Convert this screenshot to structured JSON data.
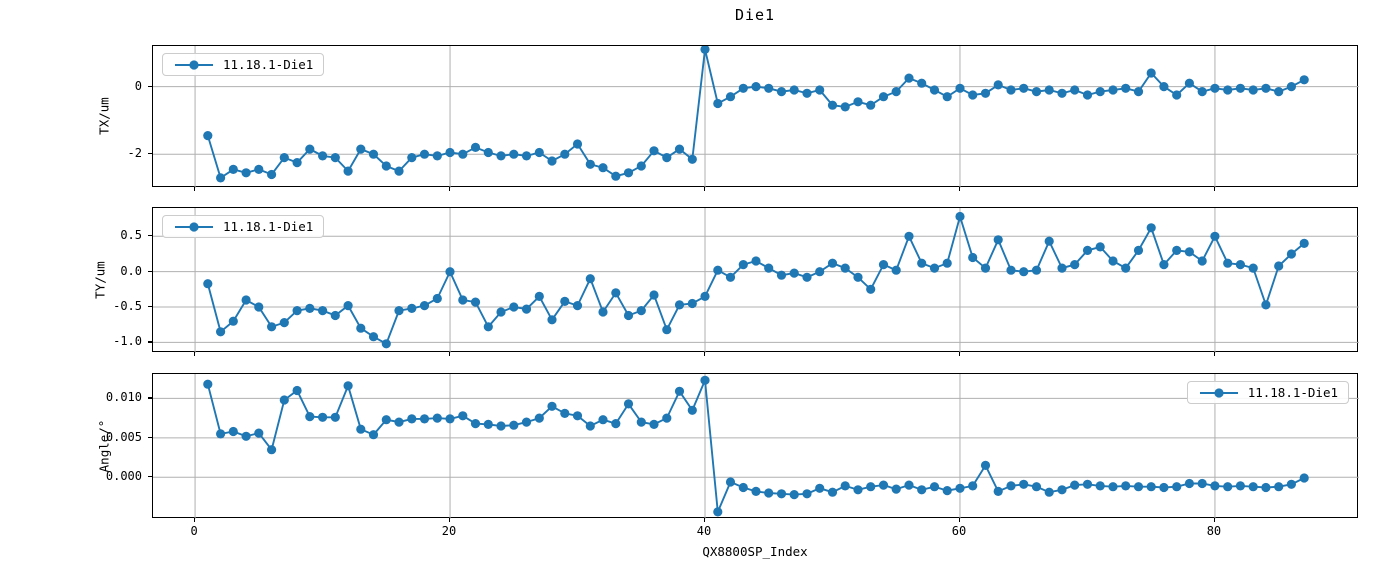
{
  "title": "Die1",
  "xlabel": "QX8800SP_Index",
  "legend_label": "11.18.1-Die1",
  "colors": {
    "series": "#1f77b4",
    "grid": "#b0b0b0",
    "spine": "#000000",
    "legend_border": "#cccccc",
    "background": "#ffffff",
    "text": "#000000"
  },
  "chart_data": [
    {
      "type": "line",
      "ylabel": "TX/um",
      "legend": {
        "label": "11.18.1-Die1",
        "position": "top-left"
      },
      "x_start": 1,
      "x_step": 1,
      "xlim": [
        -3.3,
        91.3
      ],
      "ylim": [
        -3.0,
        1.2
      ],
      "grid": true,
      "xticks": [
        {
          "v": 0,
          "label": "0"
        },
        {
          "v": 20,
          "label": "20"
        },
        {
          "v": 40,
          "label": "40"
        },
        {
          "v": 60,
          "label": "60"
        },
        {
          "v": 80,
          "label": "80"
        }
      ],
      "yticks": [
        {
          "v": 0,
          "label": "0"
        },
        {
          "v": -2,
          "label": "-2"
        }
      ],
      "series": [
        {
          "name": "11.18.1-Die1",
          "color": "#1f77b4",
          "values": [
            -1.45,
            -2.7,
            -2.45,
            -2.55,
            -2.45,
            -2.6,
            -2.1,
            -2.25,
            -1.85,
            -2.05,
            -2.1,
            -2.5,
            -1.85,
            -2.0,
            -2.35,
            -2.5,
            -2.1,
            -2.0,
            -2.05,
            -1.95,
            -2.0,
            -1.8,
            -1.95,
            -2.05,
            -2.0,
            -2.05,
            -1.95,
            -2.2,
            -2.0,
            -1.7,
            -2.3,
            -2.4,
            -2.65,
            -2.55,
            -2.35,
            -1.9,
            -2.1,
            -1.85,
            -2.15,
            1.1,
            -0.5,
            -0.3,
            -0.05,
            0.0,
            -0.05,
            -0.15,
            -0.1,
            -0.2,
            -0.1,
            -0.55,
            -0.6,
            -0.45,
            -0.55,
            -0.3,
            -0.15,
            0.25,
            0.1,
            -0.1,
            -0.3,
            -0.05,
            -0.25,
            -0.2,
            0.05,
            -0.1,
            -0.05,
            -0.15,
            -0.1,
            -0.2,
            -0.1,
            -0.25,
            -0.15,
            -0.1,
            -0.05,
            -0.15,
            0.4,
            0.0,
            -0.25,
            0.1,
            -0.15,
            -0.05,
            -0.1,
            -0.05,
            -0.1,
            -0.05,
            -0.15,
            0.0,
            0.2
          ]
        }
      ]
    },
    {
      "type": "line",
      "ylabel": "TY/um",
      "legend": {
        "label": "11.18.1-Die1",
        "position": "top-left"
      },
      "x_start": 1,
      "x_step": 1,
      "xlim": [
        -3.3,
        91.3
      ],
      "ylim": [
        -1.15,
        0.9
      ],
      "grid": true,
      "xticks": [
        {
          "v": 0,
          "label": "0"
        },
        {
          "v": 20,
          "label": "20"
        },
        {
          "v": 40,
          "label": "40"
        },
        {
          "v": 60,
          "label": "60"
        },
        {
          "v": 80,
          "label": "80"
        }
      ],
      "yticks": [
        {
          "v": 0.5,
          "label": "0.5"
        },
        {
          "v": 0.0,
          "label": "0.0"
        },
        {
          "v": -0.5,
          "label": "-0.5"
        },
        {
          "v": -1.0,
          "label": "-1.0"
        }
      ],
      "series": [
        {
          "name": "11.18.1-Die1",
          "color": "#1f77b4",
          "values": [
            -0.17,
            -0.85,
            -0.7,
            -0.4,
            -0.5,
            -0.78,
            -0.72,
            -0.55,
            -0.52,
            -0.55,
            -0.62,
            -0.48,
            -0.8,
            -0.92,
            -1.02,
            -0.55,
            -0.52,
            -0.48,
            -0.38,
            0.0,
            -0.4,
            -0.43,
            -0.78,
            -0.57,
            -0.5,
            -0.53,
            -0.35,
            -0.68,
            -0.42,
            -0.48,
            -0.1,
            -0.57,
            -0.3,
            -0.62,
            -0.55,
            -0.33,
            -0.82,
            -0.47,
            -0.45,
            -0.35,
            0.02,
            -0.08,
            0.1,
            0.15,
            0.05,
            -0.05,
            -0.02,
            -0.08,
            0.0,
            0.12,
            0.05,
            -0.08,
            -0.25,
            0.1,
            0.02,
            0.5,
            0.12,
            0.05,
            0.12,
            0.78,
            0.2,
            0.05,
            0.45,
            0.02,
            0.0,
            0.02,
            0.43,
            0.05,
            0.1,
            0.3,
            0.35,
            0.15,
            0.05,
            0.3,
            0.62,
            0.1,
            0.3,
            0.28,
            0.15,
            0.5,
            0.12,
            0.1,
            0.05,
            -0.47,
            0.08,
            0.25,
            0.4
          ]
        }
      ]
    },
    {
      "type": "line",
      "ylabel": "Angle/°",
      "legend": {
        "label": "11.18.1-Die1",
        "position": "top-right"
      },
      "x_start": 1,
      "x_step": 1,
      "xlim": [
        -3.3,
        91.3
      ],
      "ylim": [
        -0.0053,
        0.0131
      ],
      "grid": true,
      "xticks": [
        {
          "v": 0,
          "label": "0"
        },
        {
          "v": 20,
          "label": "20"
        },
        {
          "v": 40,
          "label": "40"
        },
        {
          "v": 60,
          "label": "60"
        },
        {
          "v": 80,
          "label": "80"
        }
      ],
      "yticks": [
        {
          "v": 0.01,
          "label": "0.010"
        },
        {
          "v": 0.005,
          "label": "0.005"
        },
        {
          "v": 0.0,
          "label": "0.000"
        }
      ],
      "series": [
        {
          "name": "11.18.1-Die1",
          "color": "#1f77b4",
          "values": [
            0.0118,
            0.0055,
            0.0058,
            0.0052,
            0.0056,
            0.0035,
            0.0098,
            0.011,
            0.0077,
            0.0076,
            0.0076,
            0.0116,
            0.0061,
            0.0054,
            0.0073,
            0.007,
            0.0074,
            0.0074,
            0.0075,
            0.0074,
            0.0078,
            0.0068,
            0.0067,
            0.0065,
            0.0066,
            0.007,
            0.0075,
            0.009,
            0.0081,
            0.0078,
            0.0065,
            0.0073,
            0.0068,
            0.0093,
            0.007,
            0.0067,
            0.0075,
            0.0109,
            0.0085,
            0.0123,
            -0.0044,
            -0.0006,
            -0.0013,
            -0.0018,
            -0.002,
            -0.0021,
            -0.0022,
            -0.0021,
            -0.0014,
            -0.0019,
            -0.0011,
            -0.0016,
            -0.0012,
            -0.001,
            -0.0015,
            -0.001,
            -0.0016,
            -0.0012,
            -0.0017,
            -0.0014,
            -0.0011,
            0.0015,
            -0.0018,
            -0.0011,
            -0.0009,
            -0.0012,
            -0.0019,
            -0.0016,
            -0.001,
            -0.0009,
            -0.0011,
            -0.0012,
            -0.0011,
            -0.0012,
            -0.0012,
            -0.0013,
            -0.0012,
            -0.0008,
            -0.0008,
            -0.0011,
            -0.0012,
            -0.0011,
            -0.0012,
            -0.0013,
            -0.0012,
            -0.0009,
            -0.0001
          ]
        }
      ]
    }
  ]
}
